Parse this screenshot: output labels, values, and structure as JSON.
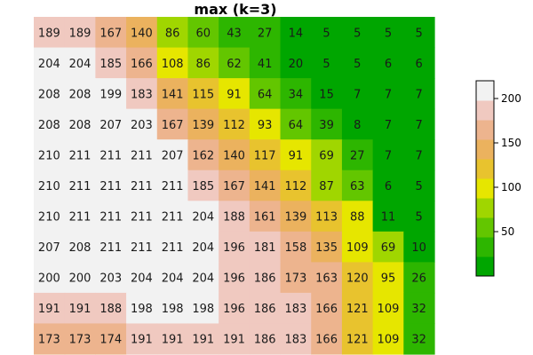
{
  "chart_data": {
    "type": "heatmap",
    "title": "max (k=3)",
    "values": [
      [
        189,
        189,
        167,
        140,
        86,
        60,
        43,
        27,
        14,
        5,
        5,
        5,
        5
      ],
      [
        204,
        204,
        185,
        166,
        108,
        86,
        62,
        41,
        20,
        5,
        5,
        6,
        6
      ],
      [
        208,
        208,
        199,
        183,
        141,
        115,
        91,
        64,
        34,
        15,
        7,
        7,
        7
      ],
      [
        208,
        208,
        207,
        203,
        167,
        139,
        112,
        93,
        64,
        39,
        8,
        7,
        7
      ],
      [
        210,
        211,
        211,
        211,
        207,
        162,
        140,
        117,
        91,
        69,
        27,
        7,
        7
      ],
      [
        210,
        211,
        211,
        211,
        211,
        185,
        167,
        141,
        112,
        87,
        63,
        6,
        5
      ],
      [
        210,
        211,
        211,
        211,
        211,
        204,
        188,
        161,
        139,
        113,
        88,
        11,
        5
      ],
      [
        207,
        208,
        211,
        211,
        211,
        204,
        196,
        181,
        158,
        135,
        109,
        69,
        10
      ],
      [
        200,
        200,
        203,
        204,
        204,
        204,
        196,
        186,
        173,
        163,
        120,
        95,
        26
      ],
      [
        191,
        191,
        188,
        198,
        198,
        198,
        196,
        186,
        183,
        166,
        121,
        109,
        32
      ],
      [
        173,
        173,
        174,
        191,
        191,
        191,
        191,
        186,
        183,
        166,
        121,
        109,
        32
      ]
    ],
    "legend": {
      "position": "right",
      "ticks": [
        50,
        100,
        150,
        200
      ],
      "range": [
        0,
        220
      ],
      "colors": [
        "#00A600",
        "#2DB600",
        "#63C600",
        "#A0D600",
        "#E6E600",
        "#E8C32E",
        "#EBB25E",
        "#EDB48E",
        "#F0C9C0",
        "#F2F2F2"
      ]
    }
  }
}
